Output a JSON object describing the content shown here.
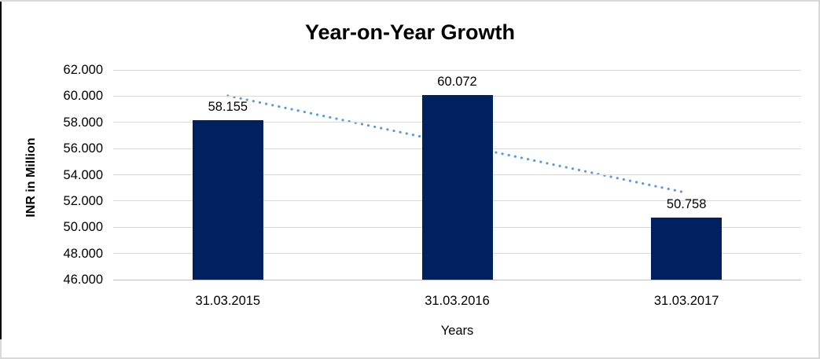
{
  "chart_data": {
    "type": "bar",
    "title": "Year-on-Year Growth",
    "xlabel": "Years",
    "ylabel": "INR in Million",
    "categories": [
      "31.03.2015",
      "31.03.2016",
      "31.03.2017"
    ],
    "values": [
      58.155,
      60.072,
      50.758
    ],
    "value_labels": [
      "58.155",
      "60.072",
      "50.758"
    ],
    "ylim": [
      46,
      62
    ],
    "ytick_step": 2,
    "ytick_labels": [
      "62.000",
      "60.000",
      "58.000",
      "56.000",
      "54.000",
      "52.000",
      "50.000",
      "48.000",
      "46.000"
    ],
    "grid": true,
    "legend_position": "none",
    "colors": {
      "bar": "#002060",
      "gridline": "#d9d9d9",
      "axis_line": "#bfbfbf",
      "trendline": "#5b9bd5",
      "text": "#000000"
    },
    "trendline": {
      "type": "linear",
      "style": "dotted",
      "color": "#5b9bd5",
      "start_value": 60.03,
      "end_value": 52.63
    }
  }
}
